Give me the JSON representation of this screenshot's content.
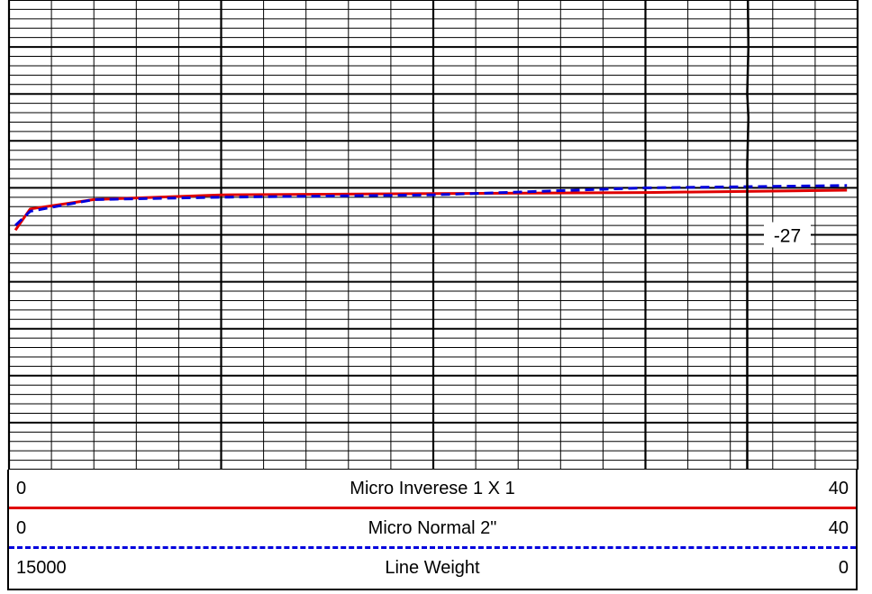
{
  "chart_data": {
    "type": "line",
    "title": "",
    "depth_marker": "-27",
    "depth_range": [
      -27.5,
      -26.5
    ],
    "series": [
      {
        "name": "Micro Inverese 1 X 1",
        "scale_min": "0",
        "scale_max": "40",
        "color": "#e00000",
        "style": "solid",
        "points": [
          [
            0.3,
            -26.99
          ],
          [
            1.0,
            -26.945
          ],
          [
            4.0,
            -26.925
          ],
          [
            10.0,
            -26.915
          ],
          [
            20.0,
            -26.912
          ],
          [
            30.0,
            -26.91
          ],
          [
            39.5,
            -26.905
          ]
        ]
      },
      {
        "name": "Micro Normal 2\"",
        "scale_min": "0",
        "scale_max": "40",
        "color": "#0000dd",
        "style": "dashed",
        "points": [
          [
            0.3,
            -26.98
          ],
          [
            1.0,
            -26.95
          ],
          [
            4.0,
            -26.925
          ],
          [
            10.0,
            -26.92
          ],
          [
            20.0,
            -26.915
          ],
          [
            30.0,
            -26.9
          ],
          [
            39.5,
            -26.895
          ]
        ]
      },
      {
        "name": "Line Weight",
        "scale_min": "15000",
        "scale_max": "0",
        "color": "#000000",
        "style": "solid",
        "points": [
          [
            1950,
            -27.6
          ],
          [
            1950,
            -26.85
          ],
          [
            1930,
            -26.75
          ],
          [
            1950,
            -26.7
          ],
          [
            1930,
            -26.6
          ],
          [
            1940,
            -26.5
          ],
          [
            1960,
            -26.45
          ],
          [
            1990,
            -26.35
          ]
        ]
      }
    ],
    "grid": true
  }
}
